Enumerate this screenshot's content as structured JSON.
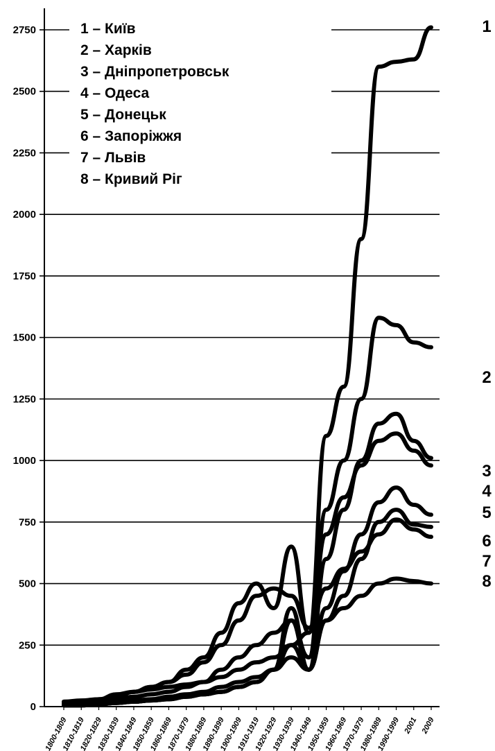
{
  "chart_data": {
    "type": "line",
    "title": "",
    "xlabel": "",
    "ylabel": "",
    "ylim": [
      0,
      2750
    ],
    "y_ticks": [
      "0",
      "250",
      "500",
      "750",
      "1000",
      "1250",
      "1500",
      "1750",
      "2000",
      "2250",
      "2500",
      "2750"
    ],
    "grid": true,
    "legend_position": "top-left",
    "categories": [
      "1800-1809",
      "1810-1819",
      "1820-1829",
      "1830-1839",
      "1840-1849",
      "1850-1859",
      "1860-1869",
      "1870-1879",
      "1880-1889",
      "1890-1899",
      "1900-1909",
      "1910-1919",
      "1920-1929",
      "1930-1939",
      "1940-1949",
      "1950-1959",
      "1960-1969",
      "1970-1979",
      "1980-1989",
      "1990-1999",
      "2001",
      "2009"
    ],
    "legend": [
      "1 – Київ",
      "2 – Харків",
      "3 – Дніпропетровськ",
      "4 – Одеса",
      "5 – Донецьк",
      "6 – Запоріжжя",
      "7 – Львів",
      "8 – Кривий Ріг"
    ],
    "end_labels": [
      "1",
      "2",
      "3",
      "4",
      "5",
      "6",
      "7",
      "8"
    ],
    "series": [
      {
        "name": "1 – Київ",
        "values": [
          20,
          20,
          30,
          50,
          60,
          70,
          80,
          90,
          100,
          120,
          150,
          180,
          200,
          250,
          300,
          1100,
          1300,
          1900,
          2600,
          2620,
          2630,
          2760
        ]
      },
      {
        "name": "2 – Харків",
        "values": [
          15,
          15,
          20,
          30,
          40,
          50,
          60,
          80,
          100,
          150,
          200,
          250,
          300,
          350,
          200,
          800,
          1000,
          1250,
          1580,
          1550,
          1480,
          1460
        ]
      },
      {
        "name": "3 – Дніпропетровськ",
        "values": [
          10,
          10,
          15,
          20,
          25,
          30,
          40,
          50,
          60,
          80,
          100,
          120,
          150,
          200,
          150,
          600,
          800,
          1000,
          1150,
          1190,
          1080,
          1010
        ]
      },
      {
        "name": "4 – Одеса",
        "values": [
          10,
          15,
          25,
          40,
          60,
          80,
          100,
          150,
          200,
          300,
          420,
          500,
          400,
          650,
          300,
          700,
          850,
          980,
          1080,
          1110,
          1040,
          980
        ]
      },
      {
        "name": "5 – Донецьк",
        "values": [
          5,
          5,
          10,
          15,
          20,
          25,
          30,
          40,
          50,
          60,
          80,
          100,
          150,
          250,
          150,
          400,
          550,
          700,
          830,
          890,
          820,
          780
        ]
      },
      {
        "name": "6 – Запоріжжя",
        "values": [
          5,
          5,
          10,
          15,
          20,
          25,
          30,
          40,
          50,
          60,
          80,
          100,
          150,
          400,
          150,
          350,
          450,
          600,
          750,
          800,
          740,
          730
        ]
      },
      {
        "name": "7 – Львів",
        "values": [
          20,
          25,
          30,
          40,
          60,
          80,
          100,
          130,
          180,
          250,
          350,
          450,
          480,
          450,
          320,
          480,
          560,
          630,
          700,
          760,
          720,
          690
        ]
      },
      {
        "name": "8 – Кривий Ріг",
        "values": [
          5,
          5,
          10,
          15,
          20,
          25,
          30,
          40,
          50,
          60,
          80,
          100,
          150,
          350,
          150,
          350,
          400,
          450,
          500,
          520,
          510,
          500
        ]
      }
    ]
  }
}
